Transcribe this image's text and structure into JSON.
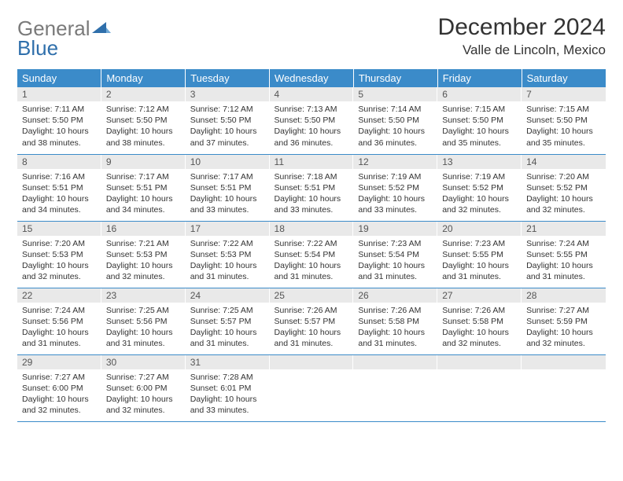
{
  "logo": {
    "text_grey": "General",
    "text_blue": "Blue"
  },
  "title": "December 2024",
  "location": "Valle de Lincoln, Mexico",
  "colors": {
    "header_bg": "#3b8bc9",
    "header_text": "#ffffff",
    "daynum_bg": "#e9e9e9",
    "border": "#3b8bc9",
    "logo_blue": "#2f6fab",
    "logo_grey": "#7a7a7a"
  },
  "weekdays": [
    "Sunday",
    "Monday",
    "Tuesday",
    "Wednesday",
    "Thursday",
    "Friday",
    "Saturday"
  ],
  "days": [
    {
      "n": "1",
      "sr": "7:11 AM",
      "ss": "5:50 PM",
      "dl": "10 hours and 38 minutes."
    },
    {
      "n": "2",
      "sr": "7:12 AM",
      "ss": "5:50 PM",
      "dl": "10 hours and 38 minutes."
    },
    {
      "n": "3",
      "sr": "7:12 AM",
      "ss": "5:50 PM",
      "dl": "10 hours and 37 minutes."
    },
    {
      "n": "4",
      "sr": "7:13 AM",
      "ss": "5:50 PM",
      "dl": "10 hours and 36 minutes."
    },
    {
      "n": "5",
      "sr": "7:14 AM",
      "ss": "5:50 PM",
      "dl": "10 hours and 36 minutes."
    },
    {
      "n": "6",
      "sr": "7:15 AM",
      "ss": "5:50 PM",
      "dl": "10 hours and 35 minutes."
    },
    {
      "n": "7",
      "sr": "7:15 AM",
      "ss": "5:50 PM",
      "dl": "10 hours and 35 minutes."
    },
    {
      "n": "8",
      "sr": "7:16 AM",
      "ss": "5:51 PM",
      "dl": "10 hours and 34 minutes."
    },
    {
      "n": "9",
      "sr": "7:17 AM",
      "ss": "5:51 PM",
      "dl": "10 hours and 34 minutes."
    },
    {
      "n": "10",
      "sr": "7:17 AM",
      "ss": "5:51 PM",
      "dl": "10 hours and 33 minutes."
    },
    {
      "n": "11",
      "sr": "7:18 AM",
      "ss": "5:51 PM",
      "dl": "10 hours and 33 minutes."
    },
    {
      "n": "12",
      "sr": "7:19 AM",
      "ss": "5:52 PM",
      "dl": "10 hours and 33 minutes."
    },
    {
      "n": "13",
      "sr": "7:19 AM",
      "ss": "5:52 PM",
      "dl": "10 hours and 32 minutes."
    },
    {
      "n": "14",
      "sr": "7:20 AM",
      "ss": "5:52 PM",
      "dl": "10 hours and 32 minutes."
    },
    {
      "n": "15",
      "sr": "7:20 AM",
      "ss": "5:53 PM",
      "dl": "10 hours and 32 minutes."
    },
    {
      "n": "16",
      "sr": "7:21 AM",
      "ss": "5:53 PM",
      "dl": "10 hours and 32 minutes."
    },
    {
      "n": "17",
      "sr": "7:22 AM",
      "ss": "5:53 PM",
      "dl": "10 hours and 31 minutes."
    },
    {
      "n": "18",
      "sr": "7:22 AM",
      "ss": "5:54 PM",
      "dl": "10 hours and 31 minutes."
    },
    {
      "n": "19",
      "sr": "7:23 AM",
      "ss": "5:54 PM",
      "dl": "10 hours and 31 minutes."
    },
    {
      "n": "20",
      "sr": "7:23 AM",
      "ss": "5:55 PM",
      "dl": "10 hours and 31 minutes."
    },
    {
      "n": "21",
      "sr": "7:24 AM",
      "ss": "5:55 PM",
      "dl": "10 hours and 31 minutes."
    },
    {
      "n": "22",
      "sr": "7:24 AM",
      "ss": "5:56 PM",
      "dl": "10 hours and 31 minutes."
    },
    {
      "n": "23",
      "sr": "7:25 AM",
      "ss": "5:56 PM",
      "dl": "10 hours and 31 minutes."
    },
    {
      "n": "24",
      "sr": "7:25 AM",
      "ss": "5:57 PM",
      "dl": "10 hours and 31 minutes."
    },
    {
      "n": "25",
      "sr": "7:26 AM",
      "ss": "5:57 PM",
      "dl": "10 hours and 31 minutes."
    },
    {
      "n": "26",
      "sr": "7:26 AM",
      "ss": "5:58 PM",
      "dl": "10 hours and 31 minutes."
    },
    {
      "n": "27",
      "sr": "7:26 AM",
      "ss": "5:58 PM",
      "dl": "10 hours and 32 minutes."
    },
    {
      "n": "28",
      "sr": "7:27 AM",
      "ss": "5:59 PM",
      "dl": "10 hours and 32 minutes."
    },
    {
      "n": "29",
      "sr": "7:27 AM",
      "ss": "6:00 PM",
      "dl": "10 hours and 32 minutes."
    },
    {
      "n": "30",
      "sr": "7:27 AM",
      "ss": "6:00 PM",
      "dl": "10 hours and 32 minutes."
    },
    {
      "n": "31",
      "sr": "7:28 AM",
      "ss": "6:01 PM",
      "dl": "10 hours and 33 minutes."
    }
  ],
  "labels": {
    "sunrise": "Sunrise: ",
    "sunset": "Sunset: ",
    "daylight": "Daylight: "
  }
}
